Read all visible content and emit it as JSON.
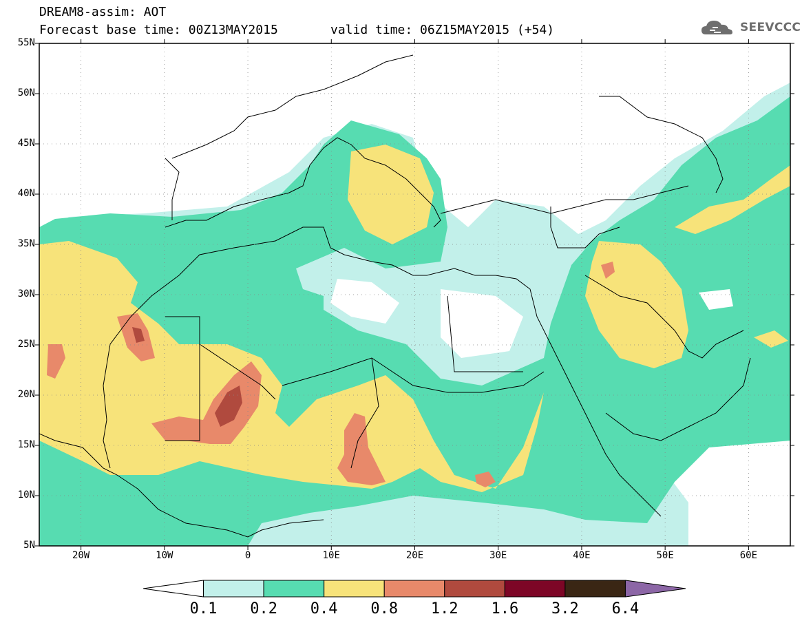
{
  "title": {
    "line1": "DREAM8-assim: AOT",
    "line2": "Forecast base time: 00Z13MAY2015",
    "valid": "valid time: 06Z15MAY2015 (+54)"
  },
  "logo": {
    "text": "SEEVCCC",
    "icon": "cloud-logo-icon",
    "color": "#6e6e6e"
  },
  "map": {
    "variable": "AOT",
    "projection": "lat-lon",
    "lon_range": [
      -25,
      65
    ],
    "lat_range": [
      5,
      55
    ],
    "grid": "dotted",
    "lat_ticks": [
      {
        "value": 55,
        "label": "55N"
      },
      {
        "value": 50,
        "label": "50N"
      },
      {
        "value": 45,
        "label": "45N"
      },
      {
        "value": 40,
        "label": "40N"
      },
      {
        "value": 35,
        "label": "35N"
      },
      {
        "value": 30,
        "label": "30N"
      },
      {
        "value": 25,
        "label": "25N"
      },
      {
        "value": 20,
        "label": "20N"
      },
      {
        "value": 15,
        "label": "15N"
      },
      {
        "value": 10,
        "label": "10N"
      },
      {
        "value": 5,
        "label": "5N"
      }
    ],
    "lon_ticks": [
      {
        "value": -20,
        "label": "20W"
      },
      {
        "value": -10,
        "label": "10W"
      },
      {
        "value": 0,
        "label": "0"
      },
      {
        "value": 10,
        "label": "10E"
      },
      {
        "value": 20,
        "label": "20E"
      },
      {
        "value": 30,
        "label": "30E"
      },
      {
        "value": 40,
        "label": "40E"
      },
      {
        "value": 50,
        "label": "50E"
      },
      {
        "value": 60,
        "label": "60E"
      }
    ]
  },
  "colorbar": {
    "levels": [
      "0.1",
      "0.2",
      "0.4",
      "0.8",
      "1.2",
      "1.6",
      "3.2",
      "6.4"
    ],
    "colors": [
      "#ffffff",
      "#c2f0ea",
      "#57dcb1",
      "#f7e37a",
      "#e8896a",
      "#b04a3e",
      "#7d0626",
      "#3a2614",
      "#8c66a6"
    ]
  }
}
